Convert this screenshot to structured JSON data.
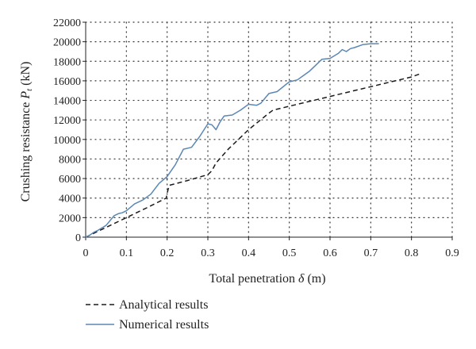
{
  "chart_data": {
    "type": "line",
    "title": "",
    "xlabel": "Total penetration δ (m)",
    "xlabel_text": "Total penetration ",
    "xlabel_symbol": "δ",
    "xlabel_unit": " (m)",
    "ylabel": "Crushing resistance P_t (kN)",
    "ylabel_text": "Crushing resistance ",
    "ylabel_symbol": "P",
    "ylabel_subscript": "t",
    "ylabel_unit": " (kN)",
    "xlim": [
      0,
      0.9
    ],
    "ylim": [
      0,
      22000
    ],
    "xticks": [
      0,
      0.1,
      0.2,
      0.3,
      0.4,
      0.5,
      0.6,
      0.7,
      0.8,
      0.9
    ],
    "xtick_labels": [
      "0",
      "0.1",
      "0.2",
      "0.3",
      "0.4",
      "0.5",
      "0.6",
      "0.7",
      "0.8",
      "0.9"
    ],
    "yticks": [
      0,
      2000,
      4000,
      6000,
      8000,
      10000,
      12000,
      14000,
      16000,
      18000,
      20000,
      22000
    ],
    "ytick_labels": [
      "0",
      "2000",
      "4000",
      "6000",
      "8000",
      "10000",
      "12000",
      "14000",
      "16000",
      "18000",
      "20000",
      "22000"
    ],
    "grid": "dotted",
    "legend_position": "bottom-left, below plot",
    "series": [
      {
        "name": "Analytical results",
        "style": "dashed",
        "color": "#1a1a1a",
        "x": [
          0,
          0.05,
          0.1,
          0.15,
          0.198,
          0.2,
          0.205,
          0.25,
          0.3,
          0.31,
          0.32,
          0.35,
          0.4,
          0.45,
          0.46,
          0.5,
          0.6,
          0.7,
          0.8,
          0.82
        ],
        "y": [
          0,
          1000,
          2000,
          3000,
          4000,
          4500,
          5300,
          5800,
          6400,
          6800,
          7600,
          9000,
          11000,
          12700,
          13000,
          13400,
          14400,
          15400,
          16400,
          16700
        ]
      },
      {
        "name": "Numerical results",
        "style": "solid",
        "color": "#5b87b5",
        "x": [
          0,
          0.01,
          0.02,
          0.03,
          0.05,
          0.07,
          0.08,
          0.09,
          0.1,
          0.12,
          0.14,
          0.16,
          0.18,
          0.2,
          0.22,
          0.24,
          0.26,
          0.28,
          0.3,
          0.31,
          0.32,
          0.33,
          0.34,
          0.36,
          0.38,
          0.4,
          0.42,
          0.43,
          0.45,
          0.47,
          0.5,
          0.52,
          0.55,
          0.58,
          0.6,
          0.62,
          0.63,
          0.64,
          0.65,
          0.66,
          0.68,
          0.7,
          0.72
        ],
        "y": [
          0,
          200,
          500,
          700,
          1200,
          2200,
          2400,
          2500,
          2700,
          3400,
          3800,
          4400,
          5500,
          6200,
          7400,
          9000,
          9200,
          10300,
          11600,
          11500,
          11000,
          11800,
          12400,
          12500,
          13000,
          13600,
          13500,
          13700,
          14700,
          14900,
          15900,
          16100,
          17000,
          18200,
          18300,
          18800,
          19200,
          19000,
          19300,
          19400,
          19700,
          19800,
          19800
        ]
      }
    ]
  }
}
